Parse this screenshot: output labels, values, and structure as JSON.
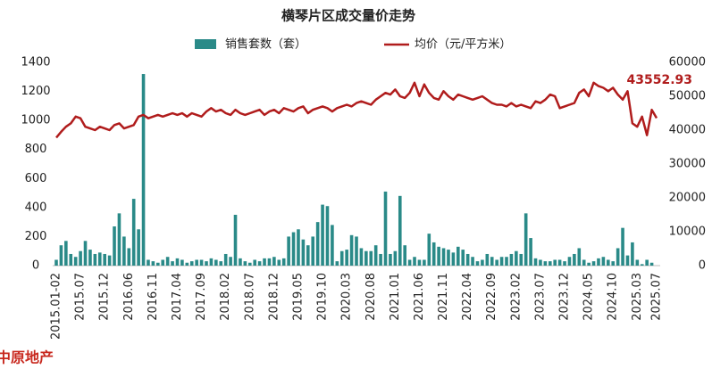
{
  "chart_data": {
    "type": "bar-line",
    "title": "横琴片区成交量价走势",
    "source": "中原地产",
    "categories": [
      "2015.01-02",
      null,
      null,
      null,
      null,
      "2015.07",
      null,
      null,
      null,
      null,
      "2015.12",
      null,
      null,
      null,
      null,
      "2016.06",
      null,
      null,
      null,
      null,
      "2016.11",
      null,
      null,
      null,
      null,
      "2017.04",
      null,
      null,
      null,
      null,
      "2017.09",
      null,
      null,
      null,
      null,
      "2018.02",
      null,
      null,
      null,
      null,
      "2018.07",
      null,
      null,
      null,
      null,
      "2018.12",
      null,
      null,
      null,
      null,
      "2019.05",
      null,
      null,
      null,
      null,
      "2019.10",
      null,
      null,
      null,
      null,
      "2020.03",
      null,
      null,
      null,
      null,
      "2020.08",
      null,
      null,
      null,
      null,
      "2021.01",
      null,
      null,
      null,
      null,
      "2021.06",
      null,
      null,
      null,
      null,
      "2021.11",
      null,
      null,
      null,
      null,
      "2022.04",
      null,
      null,
      null,
      null,
      "2022.09",
      null,
      null,
      null,
      null,
      "2023.02",
      null,
      null,
      null,
      null,
      "2023.07",
      null,
      null,
      null,
      null,
      "2023.12",
      null,
      null,
      null,
      null,
      "2024.05",
      null,
      null,
      null,
      null,
      "2024.10",
      null,
      null,
      null,
      null,
      "2025.03",
      null,
      null,
      null,
      "2025.07"
    ],
    "series": [
      {
        "name": "销售套数（套）",
        "color": "#2a8a88",
        "type": "bar",
        "axis": "y",
        "values": [
          40,
          140,
          170,
          80,
          60,
          100,
          170,
          110,
          80,
          90,
          80,
          70,
          270,
          360,
          200,
          120,
          460,
          250,
          1320,
          40,
          30,
          20,
          40,
          60,
          30,
          50,
          40,
          20,
          30,
          40,
          40,
          30,
          50,
          40,
          30,
          80,
          60,
          350,
          50,
          30,
          20,
          40,
          30,
          50,
          50,
          60,
          40,
          50,
          200,
          230,
          250,
          180,
          140,
          200,
          300,
          420,
          410,
          280,
          30,
          100,
          110,
          210,
          200,
          120,
          100,
          100,
          140,
          80,
          510,
          80,
          100,
          480,
          140,
          40,
          60,
          40,
          40,
          220,
          160,
          130,
          120,
          110,
          90,
          130,
          110,
          80,
          60,
          30,
          40,
          80,
          60,
          40,
          60,
          60,
          80,
          100,
          80,
          360,
          190,
          50,
          40,
          30,
          30,
          40,
          40,
          30,
          60,
          80,
          120,
          40,
          20,
          30,
          50,
          60,
          40,
          30,
          120,
          260,
          70,
          160,
          40,
          10,
          40,
          20,
          0
        ]
      },
      {
        "name": "均价（元/平方米）",
        "color": "#b01c1c",
        "type": "line",
        "axis": "y2",
        "values": [
          37800,
          39500,
          41000,
          42000,
          44000,
          43500,
          41000,
          40500,
          40000,
          41000,
          40500,
          40000,
          41500,
          42000,
          40500,
          41000,
          41500,
          44000,
          44500,
          43500,
          44000,
          44500,
          44000,
          44500,
          45000,
          44500,
          45000,
          44000,
          45000,
          44500,
          44000,
          45500,
          46500,
          45500,
          46000,
          45000,
          44500,
          46000,
          45000,
          44500,
          45000,
          45500,
          46000,
          44500,
          45500,
          46000,
          45000,
          46500,
          46000,
          45500,
          46500,
          47000,
          45000,
          46000,
          46500,
          47000,
          46500,
          45500,
          46500,
          47000,
          47500,
          47000,
          48000,
          48500,
          48000,
          47500,
          49000,
          50000,
          51000,
          50500,
          52000,
          50000,
          49500,
          51000,
          54000,
          50000,
          53500,
          51000,
          49500,
          49000,
          51500,
          50000,
          49000,
          50500,
          50000,
          49500,
          49000,
          49500,
          50000,
          49000,
          48000,
          47500,
          47500,
          47000,
          48000,
          47000,
          47500,
          47000,
          46500,
          48500,
          48000,
          49000,
          50500,
          50000,
          46500,
          47000,
          47500,
          48000,
          51000,
          52000,
          50000,
          54000,
          53000,
          52500,
          51500,
          52500,
          50500,
          49000,
          51500,
          42000,
          41000,
          44000,
          38500,
          46000,
          43552.93
        ]
      }
    ],
    "ylim": [
      0,
      1400
    ],
    "yticks": [
      0,
      200,
      400,
      600,
      800,
      1000,
      1200,
      1400
    ],
    "y2lim": [
      0,
      60000
    ],
    "y2ticks": [
      0,
      10000,
      20000,
      30000,
      40000,
      50000,
      60000
    ],
    "grid": false
  }
}
